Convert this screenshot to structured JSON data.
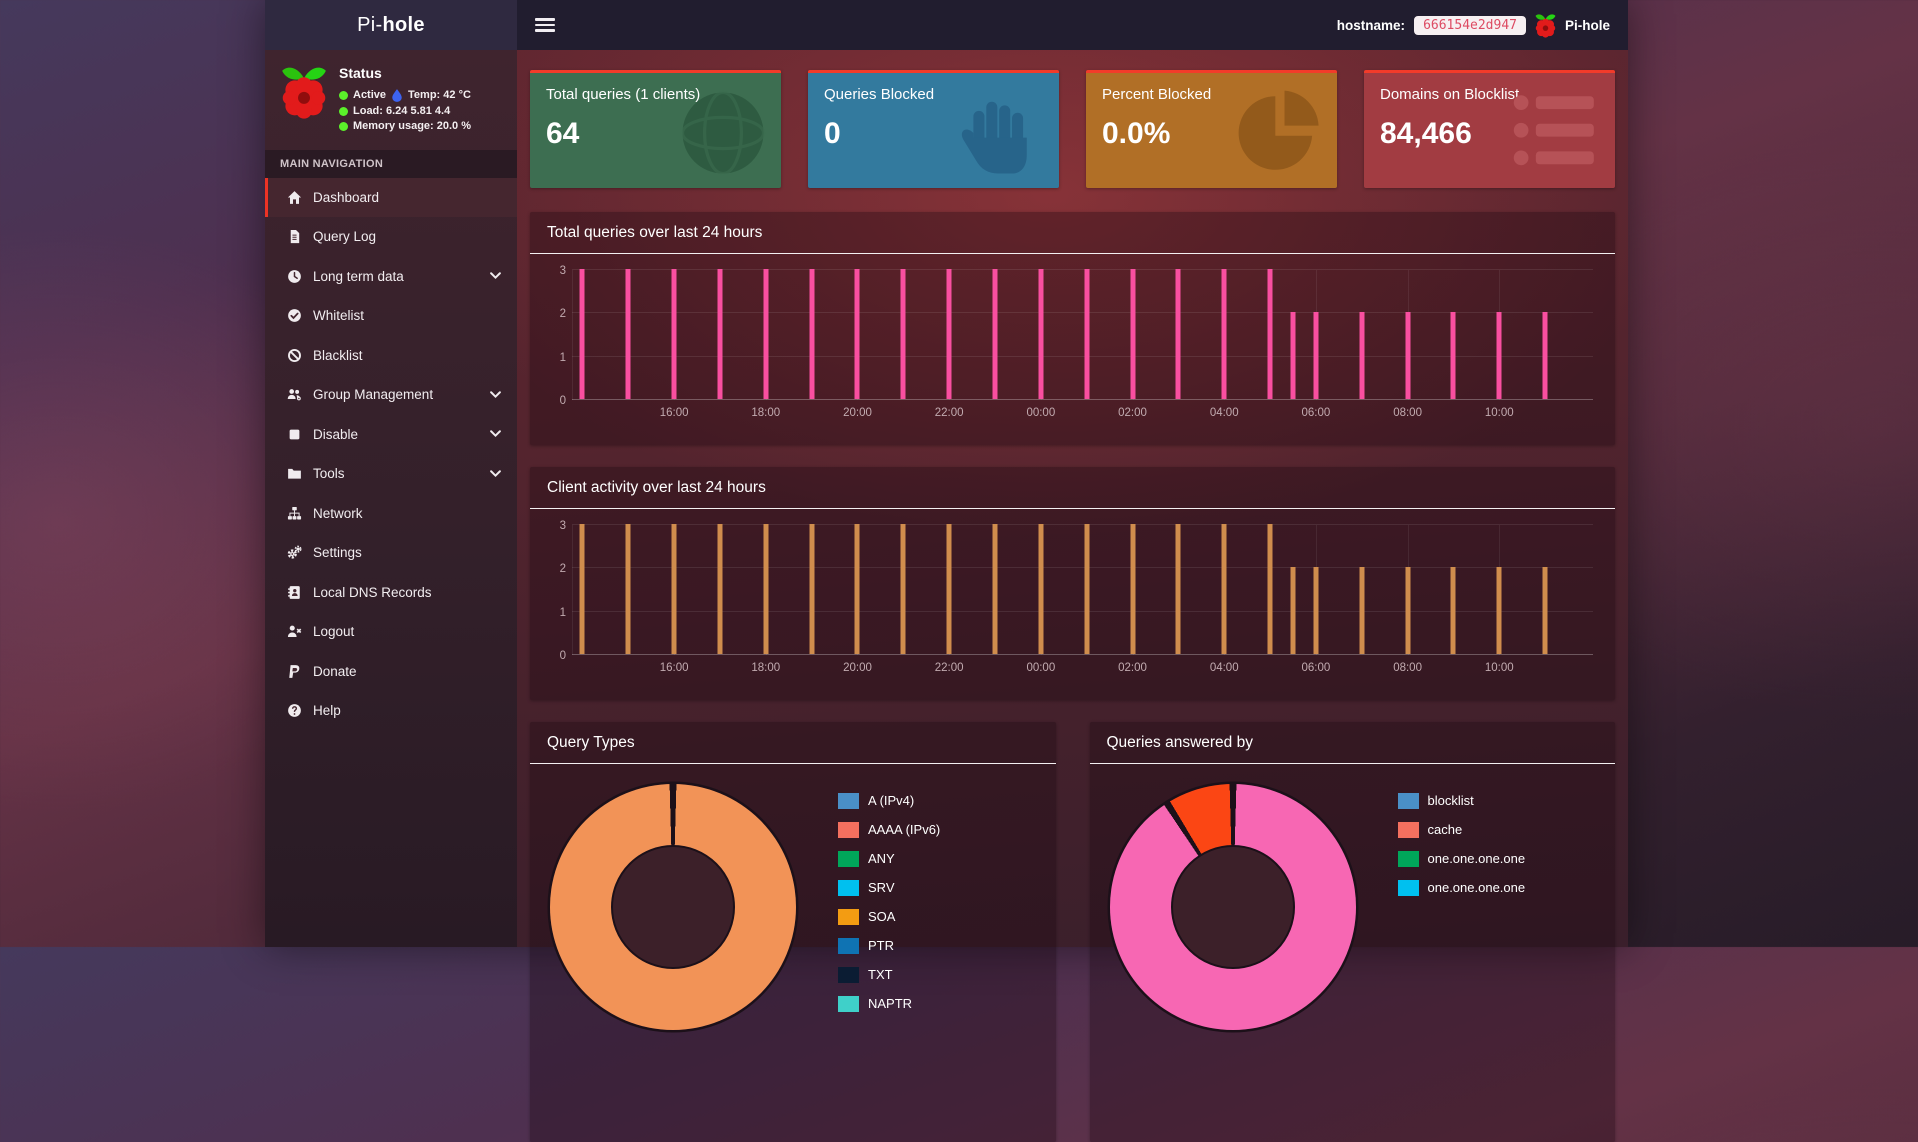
{
  "navbar": {
    "logo_prefix": "Pi-",
    "logo_bold": "hole",
    "hostname_label": "hostname:",
    "hostname_value": "666154e2d947",
    "brand": "Pi-hole"
  },
  "sidebar": {
    "status": {
      "heading": "Status",
      "active_label": "Active",
      "temp_text": "Temp: 42 °C",
      "load_text": "Load:  6.24  5.81  4.4",
      "memory_text": "Memory usage:  20.0 %"
    },
    "section_header": "MAIN NAVIGATION",
    "items": [
      {
        "label": "Dashboard",
        "icon": "home-icon",
        "active": true,
        "chevron": false
      },
      {
        "label": "Query Log",
        "icon": "file-icon",
        "active": false,
        "chevron": false
      },
      {
        "label": "Long term data",
        "icon": "clock-icon",
        "active": false,
        "chevron": true
      },
      {
        "label": "Whitelist",
        "icon": "check-circle-icon",
        "active": false,
        "chevron": false
      },
      {
        "label": "Blacklist",
        "icon": "ban-icon",
        "active": false,
        "chevron": false
      },
      {
        "label": "Group Management",
        "icon": "users-icon",
        "active": false,
        "chevron": true
      },
      {
        "label": "Disable",
        "icon": "stop-icon",
        "active": false,
        "chevron": true
      },
      {
        "label": "Tools",
        "icon": "folder-icon",
        "active": false,
        "chevron": true
      },
      {
        "label": "Network",
        "icon": "sitemap-icon",
        "active": false,
        "chevron": false
      },
      {
        "label": "Settings",
        "icon": "gears-icon",
        "active": false,
        "chevron": false
      },
      {
        "label": "Local DNS Records",
        "icon": "address-book-icon",
        "active": false,
        "chevron": false
      },
      {
        "label": "Logout",
        "icon": "user-x-icon",
        "active": false,
        "chevron": false
      },
      {
        "label": "Donate",
        "icon": "paypal-icon",
        "active": false,
        "chevron": false
      },
      {
        "label": "Help",
        "icon": "question-icon",
        "active": false,
        "chevron": false
      }
    ]
  },
  "cards": [
    {
      "title": "Total queries (1 clients)",
      "value": "64",
      "bg": "#3d6e51",
      "icon": "globe-icon",
      "icon_fill": "#2e5b41",
      "accent": "#f23b2a"
    },
    {
      "title": "Queries Blocked",
      "value": "0",
      "bg": "#337a9e",
      "icon": "hand-icon",
      "icon_fill": "#27648a",
      "accent": "#f23b2a"
    },
    {
      "title": "Percent Blocked",
      "value": "0.0%",
      "bg": "#b16f26",
      "icon": "pie-icon",
      "icon_fill": "#935a1b",
      "accent": "#f23b2a"
    },
    {
      "title": "Domains on Blocklist",
      "value": "84,466",
      "bg": "#a23c42",
      "icon": "list-icon",
      "icon_fill": "#b65257",
      "accent": "#f23b2a"
    }
  ],
  "chart_data": [
    {
      "type": "bar",
      "title": "Total queries over last 24 hours",
      "series": "Queries",
      "color": "#f94fa0",
      "ylim": [
        0,
        3
      ],
      "yticks": [
        0,
        1,
        2,
        3
      ],
      "grid": true,
      "x_tick_labels": [
        "16:00",
        "18:00",
        "20:00",
        "22:00",
        "00:00",
        "02:00",
        "04:00",
        "06:00",
        "08:00",
        "10:00"
      ],
      "bars": [
        {
          "t": "14:00",
          "v": 3
        },
        {
          "t": "15:00",
          "v": 3
        },
        {
          "t": "16:00",
          "v": 3
        },
        {
          "t": "17:00",
          "v": 3
        },
        {
          "t": "18:00",
          "v": 3
        },
        {
          "t": "19:00",
          "v": 3
        },
        {
          "t": "20:00",
          "v": 3
        },
        {
          "t": "21:00",
          "v": 3
        },
        {
          "t": "22:00",
          "v": 3
        },
        {
          "t": "23:00",
          "v": 3
        },
        {
          "t": "00:00",
          "v": 3
        },
        {
          "t": "01:00",
          "v": 3
        },
        {
          "t": "02:00",
          "v": 3
        },
        {
          "t": "03:00",
          "v": 3
        },
        {
          "t": "04:00",
          "v": 3
        },
        {
          "t": "05:00",
          "v": 3
        },
        {
          "t": "05:30",
          "v": 2
        },
        {
          "t": "06:00",
          "v": 2
        },
        {
          "t": "07:00",
          "v": 2
        },
        {
          "t": "08:00",
          "v": 2
        },
        {
          "t": "09:00",
          "v": 2
        },
        {
          "t": "10:00",
          "v": 2
        },
        {
          "t": "11:00",
          "v": 2
        }
      ]
    },
    {
      "type": "bar",
      "title": "Client activity over last 24 hours",
      "series": "Client activity",
      "color": "#d08d4d",
      "ylim": [
        0,
        3
      ],
      "yticks": [
        0,
        1,
        2,
        3
      ],
      "grid": true,
      "x_tick_labels": [
        "16:00",
        "18:00",
        "20:00",
        "22:00",
        "00:00",
        "02:00",
        "04:00",
        "06:00",
        "08:00",
        "10:00"
      ],
      "bars": [
        {
          "t": "14:00",
          "v": 3
        },
        {
          "t": "15:00",
          "v": 3
        },
        {
          "t": "16:00",
          "v": 3
        },
        {
          "t": "17:00",
          "v": 3
        },
        {
          "t": "18:00",
          "v": 3
        },
        {
          "t": "19:00",
          "v": 3
        },
        {
          "t": "20:00",
          "v": 3
        },
        {
          "t": "21:00",
          "v": 3
        },
        {
          "t": "22:00",
          "v": 3
        },
        {
          "t": "23:00",
          "v": 3
        },
        {
          "t": "00:00",
          "v": 3
        },
        {
          "t": "01:00",
          "v": 3
        },
        {
          "t": "02:00",
          "v": 3
        },
        {
          "t": "03:00",
          "v": 3
        },
        {
          "t": "04:00",
          "v": 3
        },
        {
          "t": "05:00",
          "v": 3
        },
        {
          "t": "05:30",
          "v": 2
        },
        {
          "t": "06:00",
          "v": 2
        },
        {
          "t": "07:00",
          "v": 2
        },
        {
          "t": "08:00",
          "v": 2
        },
        {
          "t": "09:00",
          "v": 2
        },
        {
          "t": "10:00",
          "v": 2
        },
        {
          "t": "11:00",
          "v": 2
        }
      ]
    },
    {
      "type": "donut",
      "title": "Query Types",
      "segments": [
        {
          "name": "segment-1",
          "color": "#f29357",
          "pct": 100
        }
      ],
      "legend": [
        {
          "label": "A (IPv4)",
          "color": "#4a8fc7"
        },
        {
          "label": "AAAA (IPv6)",
          "color": "#f4705f"
        },
        {
          "label": "ANY",
          "color": "#00a65a"
        },
        {
          "label": "SRV",
          "color": "#00c0ef"
        },
        {
          "label": "SOA",
          "color": "#f39c12"
        },
        {
          "label": "PTR",
          "color": "#0f73b3"
        },
        {
          "label": "TXT",
          "color": "#0b1c33"
        },
        {
          "label": "NAPTR",
          "color": "#3fd0c9"
        }
      ],
      "legend_position": "right"
    },
    {
      "type": "donut",
      "title": "Queries answered by",
      "segments": [
        {
          "name": "segment-1",
          "color": "#f767b3",
          "pct": 91
        },
        {
          "name": "segment-2",
          "color": "#fb4614",
          "pct": 9
        }
      ],
      "legend": [
        {
          "label": "blocklist",
          "color": "#4a8fc7"
        },
        {
          "label": "cache",
          "color": "#f4705f"
        },
        {
          "label": "one.one.one.one",
          "color": "#00a65a"
        },
        {
          "label": "one.one.one.one",
          "color": "#00c0ef"
        }
      ],
      "legend_position": "right"
    }
  ]
}
